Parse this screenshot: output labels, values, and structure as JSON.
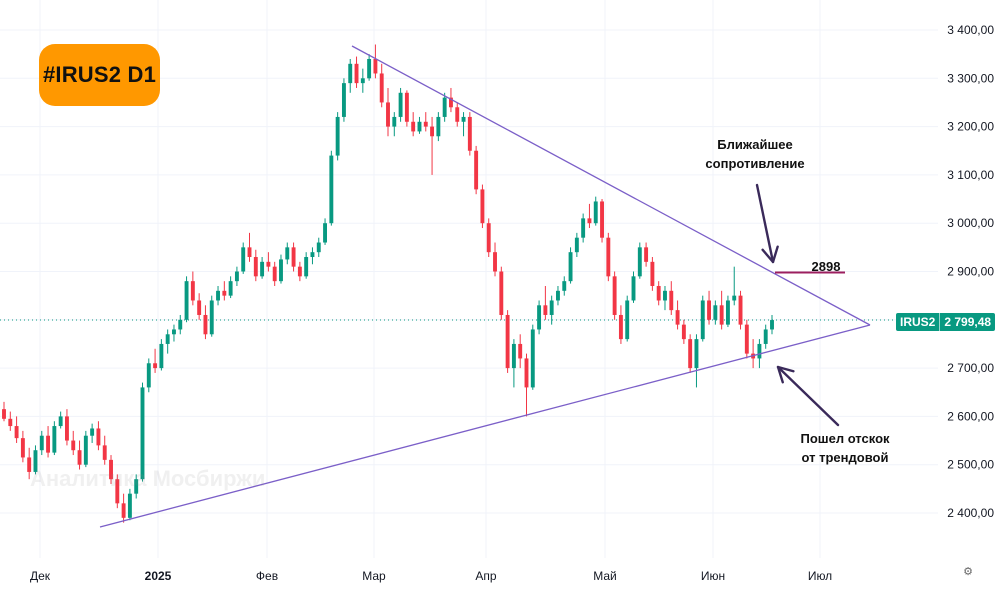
{
  "badge": "#IRUS2 D1",
  "watermark": "Аналитика Мосбиржи",
  "annotations": {
    "resistance": [
      "Ближайшее",
      "сопротивление"
    ],
    "bounce": [
      "Пошел отскок",
      "от трендовой"
    ],
    "level_label": "2898"
  },
  "price_tag": {
    "symbol": "IRUS2",
    "price": "2 799,48"
  },
  "colors": {
    "up": "#089981",
    "down": "#f23645",
    "trendline": "#7b5fc8",
    "level": "#9c1f5f",
    "badge": "#ff9800",
    "arrow": "#3a2a5a"
  },
  "icons": {
    "settings": "gear-icon"
  },
  "chart_data": {
    "type": "candlestick",
    "symbol": "IRUS2",
    "timeframe": "D1",
    "title": "#IRUS2 D1",
    "y_ticks": [
      2400,
      2500,
      2600,
      2700,
      2800,
      2900,
      3000,
      3100,
      3200,
      3300,
      3400
    ],
    "y_tick_labels": [
      "2 400,00",
      "2 500,00",
      "2 600,00",
      "2 700,00",
      "2 800,00",
      "2 900,00",
      "3 000,00",
      "3 100,00",
      "3 200,00",
      "3 300,00",
      "3 400,00"
    ],
    "ylim": [
      2355,
      3425
    ],
    "x_labels": [
      "Дек",
      "2025",
      "Фев",
      "Мар",
      "Апр",
      "Май",
      "Июн",
      "Июл"
    ],
    "last_price": 2799.48,
    "resistance_level": 2898,
    "grid": true,
    "candles": [
      [
        2615,
        2630,
        2590,
        2595
      ],
      [
        2595,
        2610,
        2570,
        2580
      ],
      [
        2580,
        2600,
        2545,
        2555
      ],
      [
        2555,
        2570,
        2505,
        2515
      ],
      [
        2515,
        2535,
        2470,
        2485
      ],
      [
        2485,
        2540,
        2480,
        2530
      ],
      [
        2530,
        2570,
        2520,
        2560
      ],
      [
        2560,
        2580,
        2515,
        2525
      ],
      [
        2525,
        2590,
        2520,
        2580
      ],
      [
        2580,
        2610,
        2575,
        2600
      ],
      [
        2600,
        2615,
        2540,
        2550
      ],
      [
        2550,
        2570,
        2520,
        2530
      ],
      [
        2530,
        2550,
        2490,
        2500
      ],
      [
        2500,
        2570,
        2495,
        2560
      ],
      [
        2560,
        2585,
        2545,
        2575
      ],
      [
        2575,
        2590,
        2530,
        2540
      ],
      [
        2540,
        2560,
        2500,
        2510
      ],
      [
        2510,
        2520,
        2460,
        2470
      ],
      [
        2470,
        2480,
        2410,
        2420
      ],
      [
        2420,
        2440,
        2380,
        2390
      ],
      [
        2390,
        2450,
        2385,
        2440
      ],
      [
        2440,
        2480,
        2430,
        2470
      ],
      [
        2470,
        2670,
        2465,
        2660
      ],
      [
        2660,
        2720,
        2650,
        2710
      ],
      [
        2710,
        2740,
        2690,
        2700
      ],
      [
        2700,
        2760,
        2695,
        2750
      ],
      [
        2750,
        2780,
        2730,
        2770
      ],
      [
        2770,
        2790,
        2755,
        2780
      ],
      [
        2780,
        2810,
        2770,
        2800
      ],
      [
        2800,
        2890,
        2795,
        2880
      ],
      [
        2880,
        2900,
        2830,
        2840
      ],
      [
        2840,
        2855,
        2800,
        2810
      ],
      [
        2810,
        2830,
        2760,
        2770
      ],
      [
        2770,
        2850,
        2765,
        2840
      ],
      [
        2840,
        2870,
        2830,
        2860
      ],
      [
        2860,
        2880,
        2840,
        2850
      ],
      [
        2850,
        2890,
        2845,
        2880
      ],
      [
        2880,
        2910,
        2870,
        2900
      ],
      [
        2900,
        2960,
        2895,
        2950
      ],
      [
        2950,
        2980,
        2920,
        2930
      ],
      [
        2930,
        2945,
        2880,
        2890
      ],
      [
        2890,
        2930,
        2885,
        2920
      ],
      [
        2920,
        2940,
        2900,
        2910
      ],
      [
        2910,
        2920,
        2870,
        2880
      ],
      [
        2880,
        2935,
        2875,
        2925
      ],
      [
        2925,
        2960,
        2915,
        2950
      ],
      [
        2950,
        2960,
        2900,
        2910
      ],
      [
        2910,
        2920,
        2880,
        2890
      ],
      [
        2890,
        2940,
        2885,
        2930
      ],
      [
        2930,
        2950,
        2915,
        2940
      ],
      [
        2940,
        2970,
        2930,
        2960
      ],
      [
        2960,
        3010,
        2955,
        3000
      ],
      [
        3000,
        3150,
        2995,
        3140
      ],
      [
        3140,
        3230,
        3130,
        3220
      ],
      [
        3220,
        3300,
        3210,
        3290
      ],
      [
        3290,
        3340,
        3270,
        3330
      ],
      [
        3330,
        3345,
        3280,
        3290
      ],
      [
        3290,
        3320,
        3270,
        3300
      ],
      [
        3300,
        3350,
        3295,
        3340
      ],
      [
        3340,
        3370,
        3300,
        3310
      ],
      [
        3310,
        3330,
        3240,
        3250
      ],
      [
        3250,
        3280,
        3180,
        3200
      ],
      [
        3200,
        3230,
        3180,
        3220
      ],
      [
        3220,
        3280,
        3210,
        3270
      ],
      [
        3270,
        3275,
        3200,
        3210
      ],
      [
        3210,
        3230,
        3180,
        3190
      ],
      [
        3190,
        3220,
        3185,
        3210
      ],
      [
        3210,
        3230,
        3190,
        3200
      ],
      [
        3200,
        3220,
        3100,
        3180
      ],
      [
        3180,
        3230,
        3170,
        3220
      ],
      [
        3220,
        3270,
        3210,
        3260
      ],
      [
        3260,
        3280,
        3230,
        3240
      ],
      [
        3240,
        3250,
        3200,
        3210
      ],
      [
        3210,
        3230,
        3180,
        3220
      ],
      [
        3220,
        3230,
        3140,
        3150
      ],
      [
        3150,
        3160,
        3060,
        3070
      ],
      [
        3070,
        3080,
        2990,
        3000
      ],
      [
        3000,
        3010,
        2930,
        2940
      ],
      [
        2940,
        2960,
        2890,
        2900
      ],
      [
        2900,
        2910,
        2800,
        2810
      ],
      [
        2810,
        2820,
        2690,
        2700
      ],
      [
        2700,
        2760,
        2660,
        2750
      ],
      [
        2750,
        2770,
        2700,
        2720
      ],
      [
        2720,
        2730,
        2600,
        2660
      ],
      [
        2660,
        2790,
        2655,
        2780
      ],
      [
        2780,
        2840,
        2770,
        2830
      ],
      [
        2830,
        2870,
        2800,
        2810
      ],
      [
        2810,
        2850,
        2790,
        2840
      ],
      [
        2840,
        2870,
        2830,
        2860
      ],
      [
        2860,
        2890,
        2850,
        2880
      ],
      [
        2880,
        2950,
        2875,
        2940
      ],
      [
        2940,
        2980,
        2930,
        2970
      ],
      [
        2970,
        3020,
        2960,
        3010
      ],
      [
        3010,
        3040,
        2990,
        3000
      ],
      [
        3000,
        3055,
        2995,
        3045
      ],
      [
        3045,
        3050,
        2960,
        2970
      ],
      [
        2970,
        2980,
        2880,
        2890
      ],
      [
        2890,
        2900,
        2800,
        2810
      ],
      [
        2810,
        2830,
        2750,
        2760
      ],
      [
        2760,
        2850,
        2755,
        2840
      ],
      [
        2840,
        2900,
        2835,
        2890
      ],
      [
        2890,
        2960,
        2885,
        2950
      ],
      [
        2950,
        2960,
        2910,
        2920
      ],
      [
        2920,
        2930,
        2860,
        2870
      ],
      [
        2870,
        2880,
        2830,
        2840
      ],
      [
        2840,
        2870,
        2820,
        2860
      ],
      [
        2860,
        2880,
        2810,
        2820
      ],
      [
        2820,
        2840,
        2780,
        2790
      ],
      [
        2790,
        2800,
        2750,
        2760
      ],
      [
        2760,
        2770,
        2690,
        2700
      ],
      [
        2700,
        2770,
        2660,
        2760
      ],
      [
        2760,
        2850,
        2755,
        2840
      ],
      [
        2840,
        2860,
        2790,
        2800
      ],
      [
        2800,
        2840,
        2790,
        2830
      ],
      [
        2830,
        2860,
        2780,
        2790
      ],
      [
        2790,
        2850,
        2785,
        2840
      ],
      [
        2840,
        2910,
        2830,
        2850
      ],
      [
        2850,
        2860,
        2780,
        2790
      ],
      [
        2790,
        2800,
        2720,
        2730
      ],
      [
        2730,
        2760,
        2700,
        2720
      ],
      [
        2720,
        2760,
        2700,
        2750
      ],
      [
        2750,
        2790,
        2740,
        2780
      ],
      [
        2780,
        2810,
        2770,
        2799.48
      ]
    ]
  }
}
